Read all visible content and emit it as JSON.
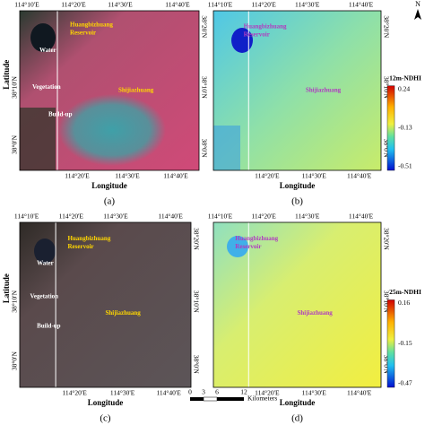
{
  "panels": [
    {
      "label": "(a)",
      "top_ticks": [
        "114°10'E",
        "114°20'E",
        "114°30'E",
        "114°40'E"
      ],
      "bottom_ticks": [
        "114°20'E",
        "114°30'E",
        "114°40'E"
      ],
      "left_ticks": [
        "38°10'N",
        "38°0'N"
      ],
      "right_ticks": [
        "38°20'N",
        "38°10'N",
        "38°0'N"
      ],
      "x_axis": "Longitude",
      "y_axis": "Latitude",
      "annotations": [
        "Huangbizhuang",
        "Reservoir",
        "Water",
        "Vegetation",
        "Shijiazhuang",
        "Build-up"
      ]
    },
    {
      "label": "(b)",
      "top_ticks": [
        "114°10'E",
        "114°20'E",
        "114°30'E",
        "114°40'E"
      ],
      "bottom_ticks": [
        "114°20'E",
        "114°30'E",
        "114°40'E"
      ],
      "right_ticks": [
        "38°20'N",
        "38°10'N",
        "38°0'N"
      ],
      "x_axis": "Longitude",
      "annotations": [
        "Huangbizhuang",
        "Reservoir",
        "Shijiazhuang"
      ],
      "colorbar": {
        "title": "12m-NDHI",
        "labels": [
          0.24,
          -0.13,
          -0.51
        ]
      }
    },
    {
      "label": "(c)",
      "top_ticks": [
        "114°10'E",
        "114°20'E",
        "114°30'E",
        "114°40'E"
      ],
      "bottom_ticks": [
        "114°20'E",
        "114°30'E",
        "114°40'E"
      ],
      "left_ticks": [
        "38°10'N",
        "38°0'N"
      ],
      "right_ticks": [
        "38°20'N",
        "38°10'N",
        "38°0'N"
      ],
      "x_axis": "Longitude",
      "y_axis": "Latitude",
      "annotations": [
        "Huangbizhuang",
        "Reservoir",
        "Water",
        "Vegetation",
        "Shijiazhuang",
        "Build-up"
      ]
    },
    {
      "label": "(d)",
      "top_ticks": [
        "114°10'E",
        "114°20'E",
        "114°30'E",
        "114°40'E"
      ],
      "bottom_ticks": [
        "114°20'E",
        "114°30'E",
        "114°40'E"
      ],
      "right_ticks": [
        "38°20'N",
        "38°10'N",
        "38°0'N"
      ],
      "x_axis": "Longitude",
      "annotations": [
        "Huangbizhuang",
        "Reservoir",
        "Shijiazhuang"
      ],
      "colorbar": {
        "title": "25m-NDHI",
        "labels": [
          0.16,
          -0.15,
          -0.47
        ]
      }
    }
  ],
  "scale_bar": {
    "ticks": [
      "0",
      "3",
      "6",
      "12"
    ],
    "unit": "Kilometers"
  },
  "north": "N"
}
